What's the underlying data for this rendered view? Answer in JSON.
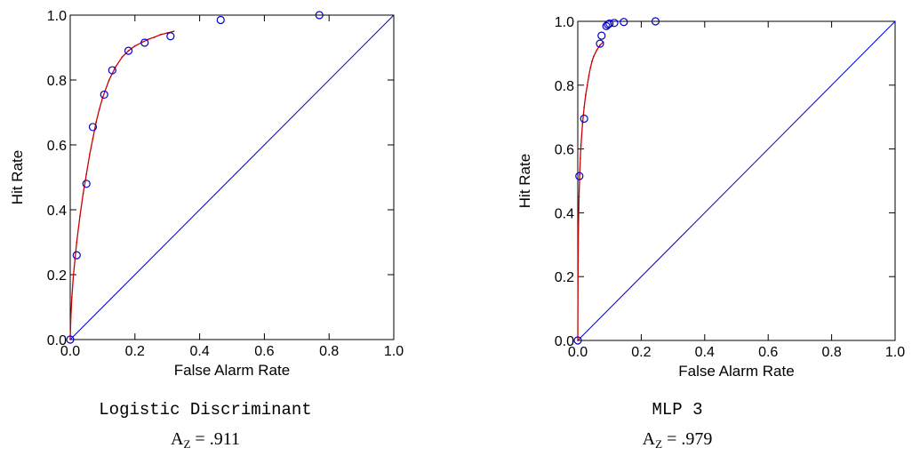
{
  "chart_data": [
    {
      "type": "scatter",
      "title": "",
      "xlabel": "False Alarm Rate",
      "ylabel": "Hit Rate",
      "xlim": [
        0,
        1
      ],
      "ylim": [
        0,
        1
      ],
      "x_ticks": [
        "0.0",
        "0.2",
        "0.4",
        "0.6",
        "0.8",
        "1.0"
      ],
      "y_ticks": [
        "0.0",
        "0.2",
        "0.4",
        "0.6",
        "0.8",
        "1.0"
      ],
      "grid": false,
      "caption": "Logistic Discriminant",
      "az_main": "A",
      "az_sub": "Z",
      "az_value": " = .911",
      "points_color": "#0000cc",
      "curve_color": "#cc0000",
      "diagonal_color": "#0000cc",
      "points": [
        {
          "x": 0.0,
          "y": 0.0
        },
        {
          "x": 0.02,
          "y": 0.26
        },
        {
          "x": 0.05,
          "y": 0.48
        },
        {
          "x": 0.07,
          "y": 0.655
        },
        {
          "x": 0.105,
          "y": 0.755
        },
        {
          "x": 0.13,
          "y": 0.83
        },
        {
          "x": 0.18,
          "y": 0.89
        },
        {
          "x": 0.23,
          "y": 0.915
        },
        {
          "x": 0.31,
          "y": 0.935
        },
        {
          "x": 0.465,
          "y": 0.985
        },
        {
          "x": 0.77,
          "y": 1.0
        }
      ],
      "fitted_curve": {
        "x": [
          0.0,
          0.002,
          0.005,
          0.01,
          0.015,
          0.02,
          0.03,
          0.04,
          0.05,
          0.06,
          0.07,
          0.08,
          0.09,
          0.1,
          0.12,
          0.14,
          0.16,
          0.18,
          0.2,
          0.22,
          0.24,
          0.26,
          0.28,
          0.3,
          0.32
        ],
        "y": [
          0.0,
          0.07,
          0.13,
          0.2,
          0.25,
          0.3,
          0.38,
          0.45,
          0.51,
          0.57,
          0.62,
          0.67,
          0.71,
          0.745,
          0.8,
          0.84,
          0.87,
          0.89,
          0.905,
          0.915,
          0.925,
          0.932,
          0.94,
          0.945,
          0.95
        ]
      }
    },
    {
      "type": "scatter",
      "title": "",
      "xlabel": "False Alarm Rate",
      "ylabel": "Hit Rate",
      "xlim": [
        0,
        1
      ],
      "ylim": [
        0,
        1
      ],
      "x_ticks": [
        "0.0",
        "0.2",
        "0.4",
        "0.6",
        "0.8",
        "1.0"
      ],
      "y_ticks": [
        "0.0",
        "0.2",
        "0.4",
        "0.6",
        "0.8",
        "1.0"
      ],
      "grid": false,
      "caption": "MLP 3",
      "az_main": "A",
      "az_sub": "Z",
      "az_value": " = .979",
      "points_color": "#0000cc",
      "curve_color": "#cc0000",
      "diagonal_color": "#0000cc",
      "points": [
        {
          "x": 0.0,
          "y": 0.0
        },
        {
          "x": 0.005,
          "y": 0.515
        },
        {
          "x": 0.02,
          "y": 0.695
        },
        {
          "x": 0.07,
          "y": 0.93
        },
        {
          "x": 0.075,
          "y": 0.955
        },
        {
          "x": 0.09,
          "y": 0.985
        },
        {
          "x": 0.095,
          "y": 0.99
        },
        {
          "x": 0.1,
          "y": 0.993
        },
        {
          "x": 0.115,
          "y": 0.995
        },
        {
          "x": 0.145,
          "y": 0.998
        },
        {
          "x": 0.245,
          "y": 1.0
        }
      ],
      "fitted_curve": {
        "x": [
          0.0,
          0.001,
          0.002,
          0.004,
          0.006,
          0.008,
          0.01,
          0.015,
          0.02,
          0.025,
          0.03,
          0.035,
          0.04,
          0.045,
          0.05,
          0.06,
          0.07,
          0.08
        ],
        "y": [
          0.0,
          0.25,
          0.35,
          0.45,
          0.52,
          0.57,
          0.61,
          0.68,
          0.73,
          0.77,
          0.8,
          0.83,
          0.855,
          0.875,
          0.89,
          0.91,
          0.925,
          0.935
        ]
      }
    }
  ]
}
